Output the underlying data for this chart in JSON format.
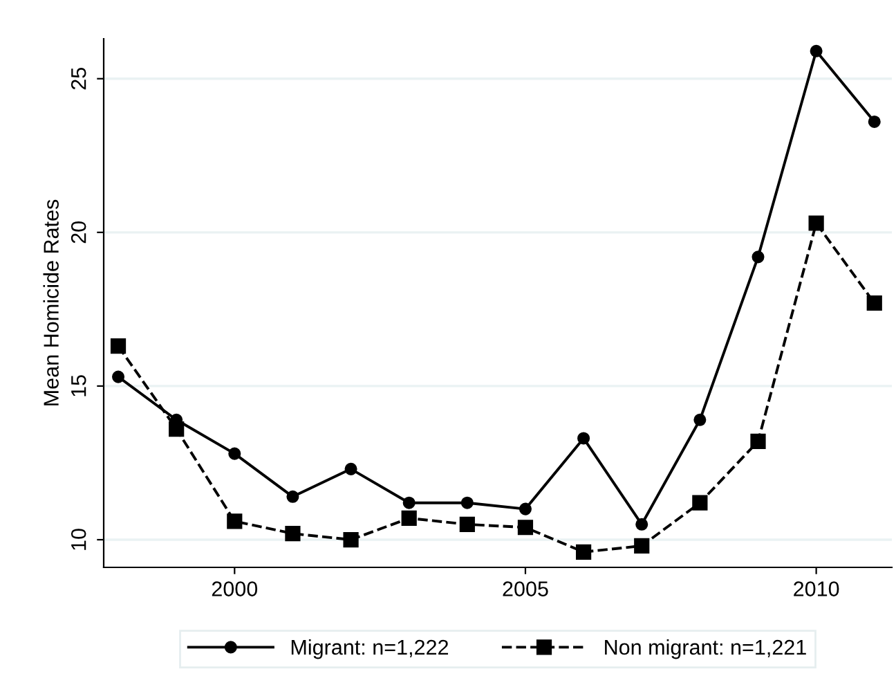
{
  "chart_data": {
    "type": "line",
    "ylabel": "Mean Homicide Rates",
    "x": [
      1998,
      1999,
      2000,
      2001,
      2002,
      2003,
      2004,
      2005,
      2006,
      2007,
      2008,
      2009,
      2010,
      2011
    ],
    "series": [
      {
        "name": "Migrant: n=1,222",
        "color": "#000000",
        "marker": "circle",
        "line_style": "solid",
        "values": [
          15.3,
          13.9,
          12.8,
          11.4,
          12.3,
          11.2,
          11.2,
          11.0,
          13.3,
          10.5,
          13.9,
          19.2,
          25.9,
          23.6
        ]
      },
      {
        "name": "Non migrant: n=1,221",
        "color": "#000000",
        "marker": "square",
        "line_style": "dashed",
        "values": [
          16.3,
          13.6,
          10.6,
          10.2,
          10.0,
          10.7,
          10.5,
          10.4,
          9.6,
          9.8,
          11.2,
          13.2,
          20.3,
          17.7
        ]
      }
    ],
    "xlim": [
      1997.75,
      2011.3
    ],
    "ylim": [
      9.1,
      26.3
    ],
    "xticks": [
      2000,
      2005,
      2010
    ],
    "yticks": [
      10,
      15,
      20,
      25
    ],
    "grid": "y",
    "legend": "bottom"
  }
}
